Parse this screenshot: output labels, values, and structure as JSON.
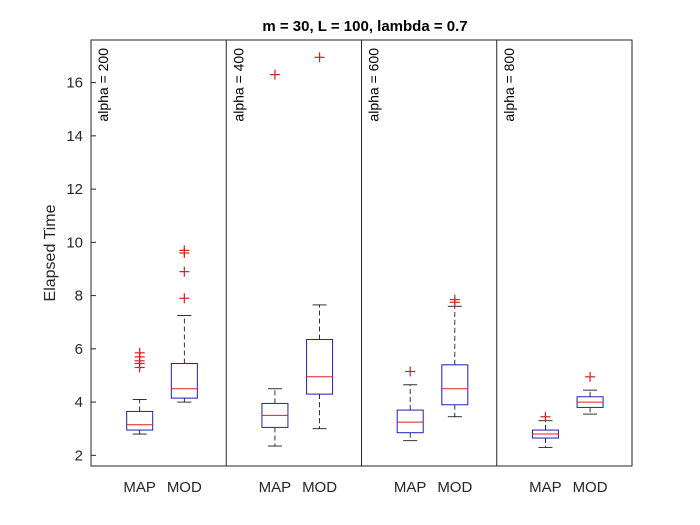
{
  "chart_data": {
    "type": "boxplot",
    "title": "m = 30, L = 100, lambda = 0.7",
    "ylabel": "Elapsed Time",
    "xlabel": "",
    "ylim": [
      1.6,
      17.6
    ],
    "yticks": [
      2,
      4,
      6,
      8,
      10,
      12,
      14,
      16
    ],
    "grid": false,
    "box_color": "#1f1fb4",
    "median_color": "#e01f1f",
    "outlier_color": "#d62020",
    "whisker_color": "#000000",
    "groups": [
      {
        "label": "alpha = 200",
        "boxes": [
          {
            "category": "MAP",
            "whisker_low": 2.8,
            "q1": 2.95,
            "median": 3.15,
            "q3": 3.65,
            "whisker_high": 4.1,
            "outliers": [
              5.3,
              5.45,
              5.55,
              5.7,
              5.85
            ]
          },
          {
            "category": "MOD",
            "whisker_low": 4.0,
            "q1": 4.15,
            "median": 4.5,
            "q3": 5.45,
            "whisker_high": 7.25,
            "outliers": [
              7.9,
              8.9,
              9.6,
              9.7
            ]
          }
        ]
      },
      {
        "label": "alpha = 400",
        "boxes": [
          {
            "category": "MAP",
            "whisker_low": 2.35,
            "q1": 3.05,
            "median": 3.5,
            "q3": 3.95,
            "whisker_high": 4.5,
            "outliers": [
              16.3
            ]
          },
          {
            "category": "MOD",
            "whisker_low": 3.0,
            "q1": 4.3,
            "median": 4.95,
            "q3": 6.35,
            "whisker_high": 7.65,
            "outliers": [
              16.95
            ]
          }
        ]
      },
      {
        "label": "alpha = 600",
        "boxes": [
          {
            "category": "MAP",
            "whisker_low": 2.55,
            "q1": 2.85,
            "median": 3.25,
            "q3": 3.7,
            "whisker_high": 4.65,
            "outliers": [
              5.15
            ]
          },
          {
            "category": "MOD",
            "whisker_low": 3.45,
            "q1": 3.9,
            "median": 4.5,
            "q3": 5.4,
            "whisker_high": 7.6,
            "outliers": [
              7.75,
              7.85
            ]
          }
        ]
      },
      {
        "label": "alpha = 800",
        "boxes": [
          {
            "category": "MAP",
            "whisker_low": 2.3,
            "q1": 2.65,
            "median": 2.8,
            "q3": 2.95,
            "whisker_high": 3.3,
            "outliers": [
              3.45
            ]
          },
          {
            "category": "MOD",
            "whisker_low": 3.55,
            "q1": 3.8,
            "median": 4.0,
            "q3": 4.2,
            "whisker_high": 4.45,
            "outliers": [
              4.95
            ]
          }
        ]
      }
    ]
  }
}
